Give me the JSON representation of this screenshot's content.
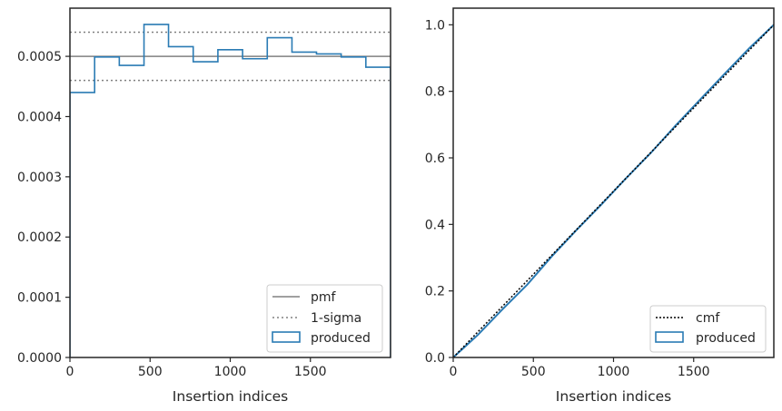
{
  "colors": {
    "produced": "#2a7bb4",
    "pmf": "#808080",
    "sigma": "#808080",
    "cmf": "#000000",
    "axes": "#262626"
  },
  "chart_data": [
    {
      "type": "histogram",
      "xlabel": "Insertion indices",
      "ylabel": "",
      "xlim": [
        0,
        2000
      ],
      "ylim": [
        0,
        0.00058
      ],
      "xticks": [
        0,
        500,
        1000,
        1500
      ],
      "yticks": [
        0.0,
        0.0001,
        0.0002,
        0.0003,
        0.0004,
        0.0005
      ],
      "ytick_labels": [
        "0.0000",
        "0.0001",
        "0.0002",
        "0.0003",
        "0.0004",
        "0.0005"
      ],
      "legend_position": "lower-right",
      "pmf": 0.0005,
      "sigma_lower": 0.00046,
      "sigma_upper": 0.00054,
      "bin_edges": [
        0,
        154,
        308,
        462,
        615,
        769,
        923,
        1077,
        1231,
        1385,
        1538,
        1692,
        1846,
        2000
      ],
      "produced": [
        0.00044,
        0.000499,
        0.000485,
        0.000553,
        0.000516,
        0.000491,
        0.000511,
        0.000496,
        0.000531,
        0.000507,
        0.000504,
        0.000499,
        0.000482
      ],
      "legend": [
        "pmf",
        "1-sigma",
        "produced"
      ]
    },
    {
      "type": "line",
      "xlabel": "Insertion indices",
      "ylabel": "",
      "xlim": [
        0,
        2000
      ],
      "ylim": [
        0,
        1.05
      ],
      "xticks": [
        0,
        500,
        1000,
        1500
      ],
      "yticks": [
        0.0,
        0.2,
        0.4,
        0.6,
        0.8,
        1.0
      ],
      "ytick_labels": [
        "0.0",
        "0.2",
        "0.4",
        "0.6",
        "0.8",
        "1.0"
      ],
      "legend_position": "lower-right",
      "cmf": {
        "x": [
          0,
          2000
        ],
        "y": [
          0,
          1.0
        ]
      },
      "produced": {
        "x": [
          0,
          154,
          308,
          462,
          615,
          769,
          923,
          1077,
          1231,
          1385,
          1538,
          1692,
          1846,
          2000
        ],
        "y": [
          0,
          0.068,
          0.145,
          0.219,
          0.304,
          0.383,
          0.459,
          0.538,
          0.614,
          0.696,
          0.774,
          0.852,
          0.929,
          1.0
        ]
      },
      "legend": [
        "cmf",
        "produced"
      ]
    }
  ]
}
